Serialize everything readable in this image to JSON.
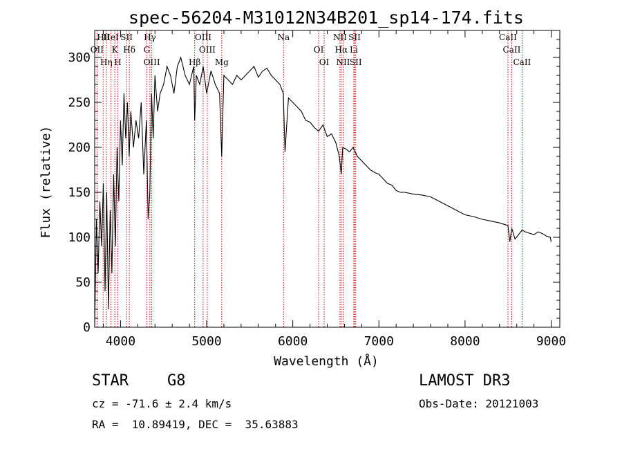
{
  "chart_data": {
    "type": "line",
    "title": "spec-56204-M31012N34B201_sp14-174.fits",
    "xlabel": "Wavelength (Å)",
    "ylabel": "Flux (relative)",
    "xlim": [
      3700,
      9100
    ],
    "ylim": [
      0,
      330
    ],
    "xticks": [
      4000,
      5000,
      6000,
      7000,
      8000,
      9000
    ],
    "yticks": [
      0,
      50,
      100,
      150,
      200,
      250,
      300
    ],
    "x": [
      3700,
      3720,
      3740,
      3760,
      3780,
      3800,
      3820,
      3840,
      3860,
      3880,
      3900,
      3920,
      3940,
      3960,
      3980,
      4000,
      4020,
      4040,
      4060,
      4080,
      4100,
      4120,
      4150,
      4180,
      4210,
      4240,
      4270,
      4300,
      4320,
      4340,
      4360,
      4380,
      4400,
      4430,
      4460,
      4500,
      4540,
      4580,
      4620,
      4660,
      4700,
      4750,
      4800,
      4850,
      4861,
      4880,
      4920,
      4960,
      5000,
      5050,
      5100,
      5150,
      5175,
      5200,
      5250,
      5300,
      5350,
      5400,
      5450,
      5500,
      5550,
      5600,
      5650,
      5700,
      5750,
      5800,
      5850,
      5890,
      5910,
      5950,
      6000,
      6050,
      6100,
      6150,
      6200,
      6250,
      6300,
      6350,
      6400,
      6450,
      6500,
      6540,
      6563,
      6580,
      6620,
      6660,
      6700,
      6750,
      6800,
      6850,
      6900,
      6950,
      7000,
      7050,
      7100,
      7150,
      7200,
      7250,
      7300,
      7400,
      7500,
      7600,
      7700,
      7800,
      7900,
      8000,
      8100,
      8200,
      8300,
      8400,
      8498,
      8520,
      8542,
      8580,
      8662,
      8700,
      8800,
      8850,
      8900,
      8950,
      8990,
      9000
    ],
    "y": [
      0,
      120,
      60,
      140,
      90,
      160,
      40,
      150,
      20,
      130,
      60,
      170,
      90,
      200,
      140,
      230,
      180,
      260,
      210,
      250,
      190,
      240,
      200,
      230,
      210,
      250,
      170,
      230,
      120,
      150,
      260,
      210,
      280,
      240,
      260,
      270,
      290,
      280,
      260,
      290,
      300,
      280,
      270,
      290,
      230,
      280,
      270,
      290,
      260,
      285,
      270,
      260,
      190,
      280,
      275,
      270,
      280,
      275,
      280,
      285,
      290,
      278,
      285,
      288,
      280,
      275,
      270,
      260,
      195,
      255,
      250,
      245,
      240,
      230,
      228,
      222,
      218,
      225,
      212,
      215,
      205,
      190,
      170,
      200,
      198,
      195,
      200,
      190,
      185,
      180,
      175,
      172,
      170,
      165,
      160,
      158,
      152,
      150,
      150,
      148,
      147,
      145,
      140,
      135,
      130,
      125,
      123,
      120,
      118,
      116,
      113,
      95,
      110,
      98,
      108,
      106,
      103,
      106,
      104,
      101,
      100,
      95
    ],
    "spectral_lines": [
      {
        "label": "Hθ",
        "wavelength": 3798
      },
      {
        "label": "OII",
        "wavelength": 3727
      },
      {
        "label": "Hη",
        "wavelength": 3835
      },
      {
        "label": "HeI",
        "wavelength": 3889
      },
      {
        "label": "K",
        "wavelength": 3934
      },
      {
        "label": "H",
        "wavelength": 3969
      },
      {
        "label": "SII",
        "wavelength": 4070
      },
      {
        "label": "Hδ",
        "wavelength": 4102
      },
      {
        "label": "OIII",
        "wavelength": 4363
      },
      {
        "label": "Hγ",
        "wavelength": 4341
      },
      {
        "label": "G",
        "wavelength": 4305
      },
      {
        "label": "Hβ",
        "wavelength": 4861
      },
      {
        "label": "OIII",
        "wavelength": 4959
      },
      {
        "label": "OIII",
        "wavelength": 5007
      },
      {
        "label": "Mg",
        "wavelength": 5175
      },
      {
        "label": "Na",
        "wavelength": 5893
      },
      {
        "label": "OI",
        "wavelength": 6300
      },
      {
        "label": "OI",
        "wavelength": 6364
      },
      {
        "label": "NII",
        "wavelength": 6548
      },
      {
        "label": "Hα",
        "wavelength": 6563
      },
      {
        "label": "NII",
        "wavelength": 6584
      },
      {
        "label": "SII",
        "wavelength": 6717
      },
      {
        "label": "Li",
        "wavelength": 6708
      },
      {
        "label": "SII",
        "wavelength": 6731
      },
      {
        "label": "CaII",
        "wavelength": 8498
      },
      {
        "label": "CaII",
        "wavelength": 8542
      },
      {
        "label": "CaII",
        "wavelength": 8662
      }
    ]
  },
  "info": {
    "class": "STAR",
    "subclass": "G8",
    "survey": "LAMOST DR3",
    "cz": "cz = -71.6 ± 2.4 km/s",
    "obs_date": "Obs-Date: 20121003",
    "coords": "RA =  10.89419, DEC =  35.63883"
  },
  "colors": {
    "line_marker": "#cc0000",
    "spectrum": "#000000"
  }
}
